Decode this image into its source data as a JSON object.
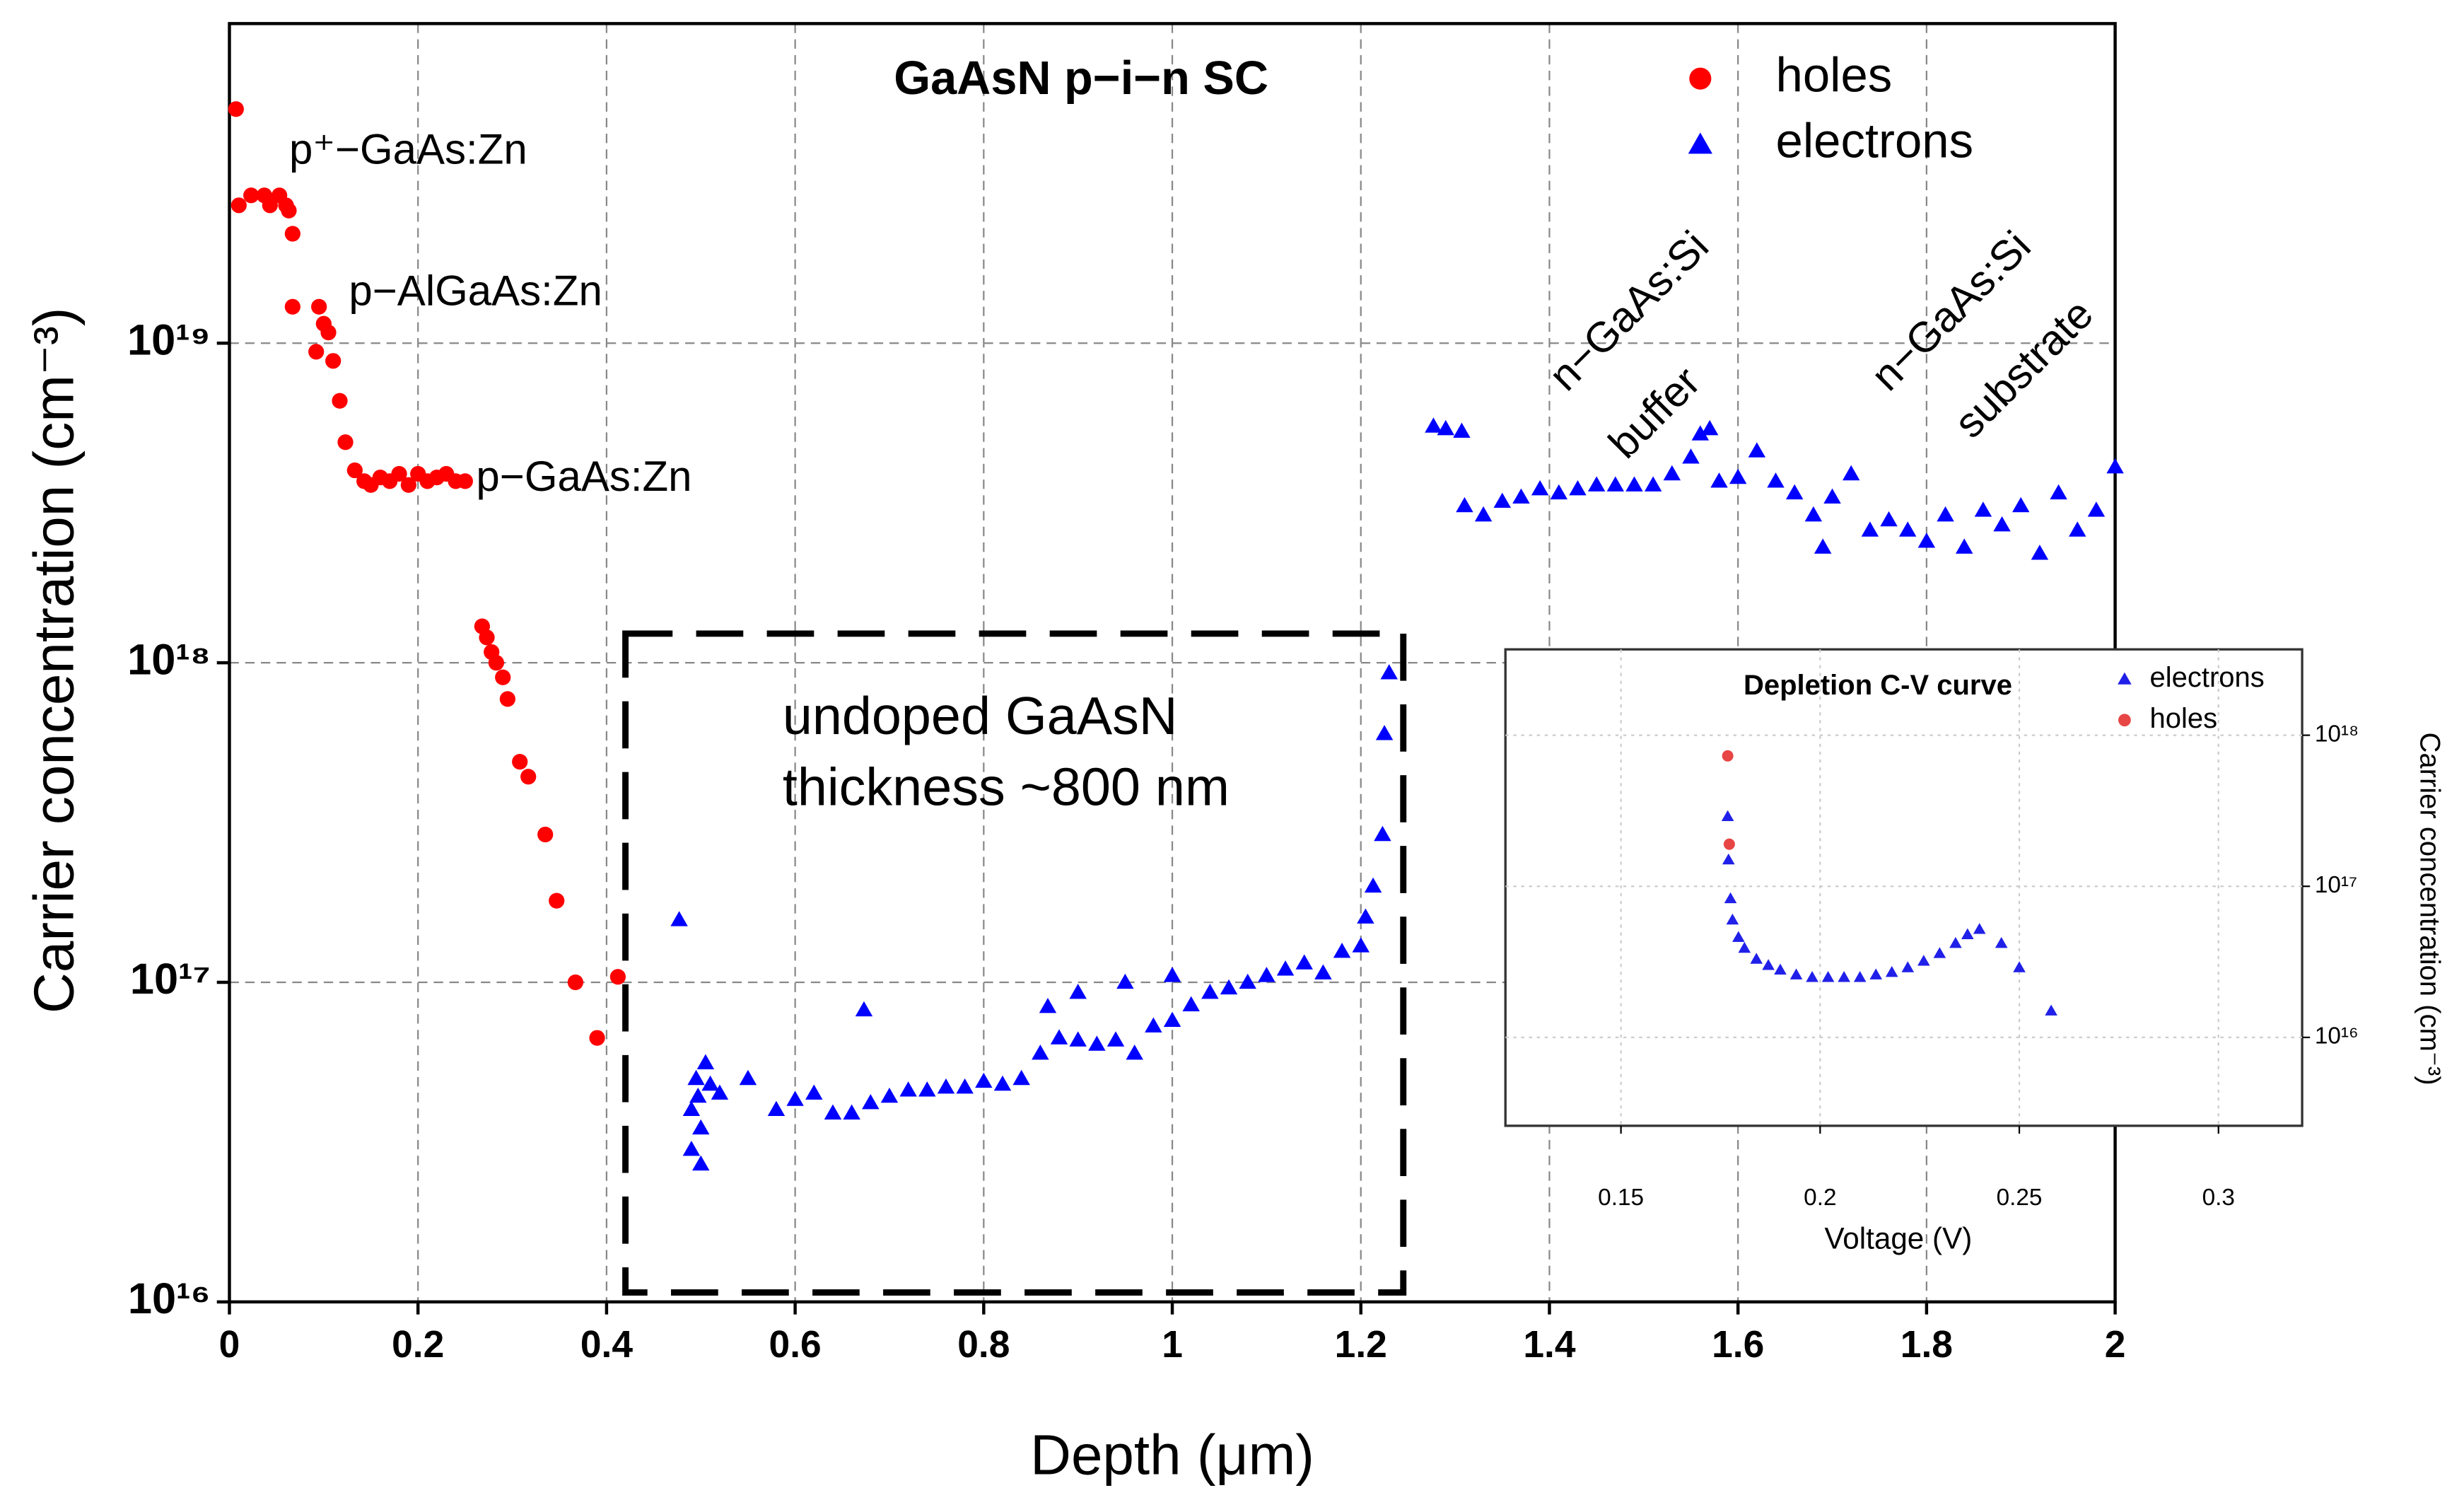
{
  "chart_data": [
    {
      "type": "scatter",
      "title": "GaAsN p−i−n SC",
      "xlabel": "Depth (μm)",
      "ylabel": "Carrier concentration  (cm⁻³)",
      "yscale": "log",
      "grid": true,
      "legend": "upper right",
      "xlim": [
        0,
        2
      ],
      "xticks": [
        0,
        0.2,
        0.4,
        0.6,
        0.8,
        1,
        1.2,
        1.4,
        1.6,
        1.8,
        2
      ],
      "ylim": [
        1e+16,
        1e+20
      ],
      "yticks": [
        {
          "value": 1e+16,
          "label": "10¹⁶"
        },
        {
          "value": 1e+17,
          "label": "10¹⁷"
        },
        {
          "value": 1e+18,
          "label": "10¹⁸"
        },
        {
          "value": 1e+19,
          "label": "10¹⁹"
        }
      ],
      "annotations": [
        "p⁺−GaAs:Zn",
        "p−AlGaAs:Zn",
        "p−GaAs:Zn",
        "undoped GaAsN",
        "thickness ~800 nm",
        "n−GaAs:Si",
        "buffer",
        "n−GaAs:Si",
        "substrate"
      ],
      "series": [
        {
          "name": "holes",
          "color": "#ff0000",
          "marker": "circle",
          "x": [
            0.007,
            0.01,
            0.023,
            0.037,
            0.043,
            0.053,
            0.06,
            0.063,
            0.067,
            0.067,
            0.095,
            0.1,
            0.105,
            0.092,
            0.11,
            0.117,
            0.123,
            0.133,
            0.143,
            0.15,
            0.16,
            0.17,
            0.18,
            0.19,
            0.2,
            0.21,
            0.22,
            0.23,
            0.24,
            0.25,
            0.268,
            0.273,
            0.278,
            0.283,
            0.29,
            0.295,
            0.308,
            0.317,
            0.335,
            0.347,
            0.367,
            0.39,
            0.412
          ],
          "values": [
            5.4e+19,
            2.7e+19,
            2.9e+19,
            2.9e+19,
            2.7e+19,
            2.9e+19,
            2.7e+19,
            2.6e+19,
            2.2e+19,
            1.3e+19,
            1.3e+19,
            1.15e+19,
            1.08e+19,
            9.4e+18,
            8.8e+18,
            6.6e+18,
            4.9e+18,
            4e+18,
            3.7e+18,
            3.6e+18,
            3.8e+18,
            3.7e+18,
            3.9e+18,
            3.6e+18,
            3.9e+18,
            3.7e+18,
            3.8e+18,
            3.9e+18,
            3.7e+18,
            3.7e+18,
            1.3e+18,
            1.2e+18,
            1.08e+18,
            1e+18,
            9e+17,
            7.7e+17,
            4.9e+17,
            4.4e+17,
            2.9e+17,
            1.8e+17,
            1e+17,
            6.7e+16,
            1.04e+17
          ]
        },
        {
          "name": "electrons",
          "color": "#0000ff",
          "marker": "triangle",
          "x": [
            0.477,
            0.49,
            0.49,
            0.495,
            0.5,
            0.5,
            0.497,
            0.505,
            0.51,
            0.52,
            0.55,
            0.58,
            0.6,
            0.62,
            0.64,
            0.66,
            0.68,
            0.7,
            0.72,
            0.74,
            0.76,
            0.78,
            0.8,
            0.82,
            0.84,
            0.86,
            0.88,
            0.9,
            0.92,
            0.94,
            0.96,
            0.98,
            1.0,
            1.02,
            1.04,
            1.06,
            1.08,
            1.1,
            1.12,
            1.14,
            1.16,
            1.18,
            1.2,
            0.673,
            0.868,
            0.9,
            1.0,
            0.95,
            1.205,
            1.213,
            1.223,
            1.225,
            1.23,
            1.277,
            1.29,
            1.307,
            1.31,
            1.33,
            1.35,
            1.37,
            1.39,
            1.41,
            1.43,
            1.45,
            1.47,
            1.49,
            1.51,
            1.53,
            1.55,
            1.56,
            1.57,
            1.58,
            1.6,
            1.62,
            1.64,
            1.66,
            1.68,
            1.69,
            1.7,
            1.72,
            1.74,
            1.76,
            1.78,
            1.8,
            1.82,
            1.84,
            1.86,
            1.88,
            1.9,
            1.92,
            1.94,
            1.96,
            1.98,
            2.0
          ],
          "values": [
            1.57e+17,
            3e+16,
            4e+16,
            5e+16,
            2.7e+16,
            3.5e+16,
            4.4e+16,
            5.6e+16,
            4.8e+16,
            4.5e+16,
            5e+16,
            4e+16,
            4.3e+16,
            4.5e+16,
            3.9e+16,
            3.9e+16,
            4.2e+16,
            4.4e+16,
            4.6e+16,
            4.6e+16,
            4.7e+16,
            4.7e+16,
            4.9e+16,
            4.8e+16,
            5e+16,
            6e+16,
            6.7e+16,
            6.6e+16,
            6.4e+16,
            6.6e+16,
            6e+16,
            7.3e+16,
            7.6e+16,
            8.5e+16,
            9.3e+16,
            9.6e+16,
            1e+17,
            1.05e+17,
            1.1e+17,
            1.15e+17,
            1.07e+17,
            1.25e+17,
            1.3e+17,
            8.2e+16,
            8.4e+16,
            9.3e+16,
            1.05e+17,
            1e+17,
            1.6e+17,
            2e+17,
            2.9e+17,
            6e+17,
            9.3e+17,
            5.5e+18,
            5.4e+18,
            5.3e+18,
            3.1e+18,
            2.9e+18,
            3.2e+18,
            3.3e+18,
            3.5e+18,
            3.4e+18,
            3.5e+18,
            3.6e+18,
            3.6e+18,
            3.6e+18,
            3.6e+18,
            3.9e+18,
            4.4e+18,
            5.2e+18,
            5.4e+18,
            3.7e+18,
            3.8e+18,
            4.6e+18,
            3.7e+18,
            3.4e+18,
            2.9e+18,
            2.3e+18,
            3.3e+18,
            3.9e+18,
            2.6e+18,
            2.8e+18,
            2.6e+18,
            2.4e+18,
            2.9e+18,
            2.3e+18,
            3e+18,
            2.7e+18,
            3.1e+18,
            2.2e+18,
            3.4e+18,
            2.6e+18,
            3e+18,
            4.1e+18
          ]
        }
      ]
    },
    {
      "type": "scatter",
      "title": "Depletion C-V curve",
      "xlabel": "Voltage (V)",
      "ylabel": "Carrier concentration   (cm⁻³)",
      "yscale": "log",
      "grid": true,
      "legend": "upper right",
      "yaxis_side": "right",
      "xlim": [
        0.121,
        0.321
      ],
      "xticks": [
        0.15,
        0.2,
        0.25,
        0.3
      ],
      "ylim": [
        2600000000000000.0,
        3.7e+18
      ],
      "yticks": [
        {
          "value": 1e+16,
          "label": "10¹⁶"
        },
        {
          "value": 1e+17,
          "label": "10¹⁷"
        },
        {
          "value": 1e+18,
          "label": "10¹⁸"
        }
      ],
      "series": [
        {
          "name": "electrons",
          "color": "#2020e8",
          "marker": "triangle",
          "x": [
            0.1768,
            0.177,
            0.1775,
            0.178,
            0.1795,
            0.181,
            0.184,
            0.187,
            0.19,
            0.194,
            0.198,
            0.202,
            0.206,
            0.21,
            0.214,
            0.218,
            0.222,
            0.226,
            0.23,
            0.234,
            0.237,
            0.24,
            0.2455,
            0.25,
            0.258
          ],
          "values": [
            2.9e+17,
            1.5e+17,
            8.3e+16,
            6e+16,
            4.6e+16,
            3.9e+16,
            3.3e+16,
            3e+16,
            2.8e+16,
            2.6e+16,
            2.5e+16,
            2.5e+16,
            2.5e+16,
            2.5e+16,
            2.6e+16,
            2.7e+16,
            2.9e+16,
            3.2e+16,
            3.6e+16,
            4.2e+16,
            4.8e+16,
            5.2e+16,
            4.2e+16,
            2.9e+16,
            1.5e+16
          ]
        },
        {
          "name": "holes",
          "color": "#e84545",
          "marker": "circle",
          "x": [
            0.1768,
            0.1772
          ],
          "values": [
            7.3e+17,
            1.9e+17
          ]
        }
      ]
    }
  ]
}
